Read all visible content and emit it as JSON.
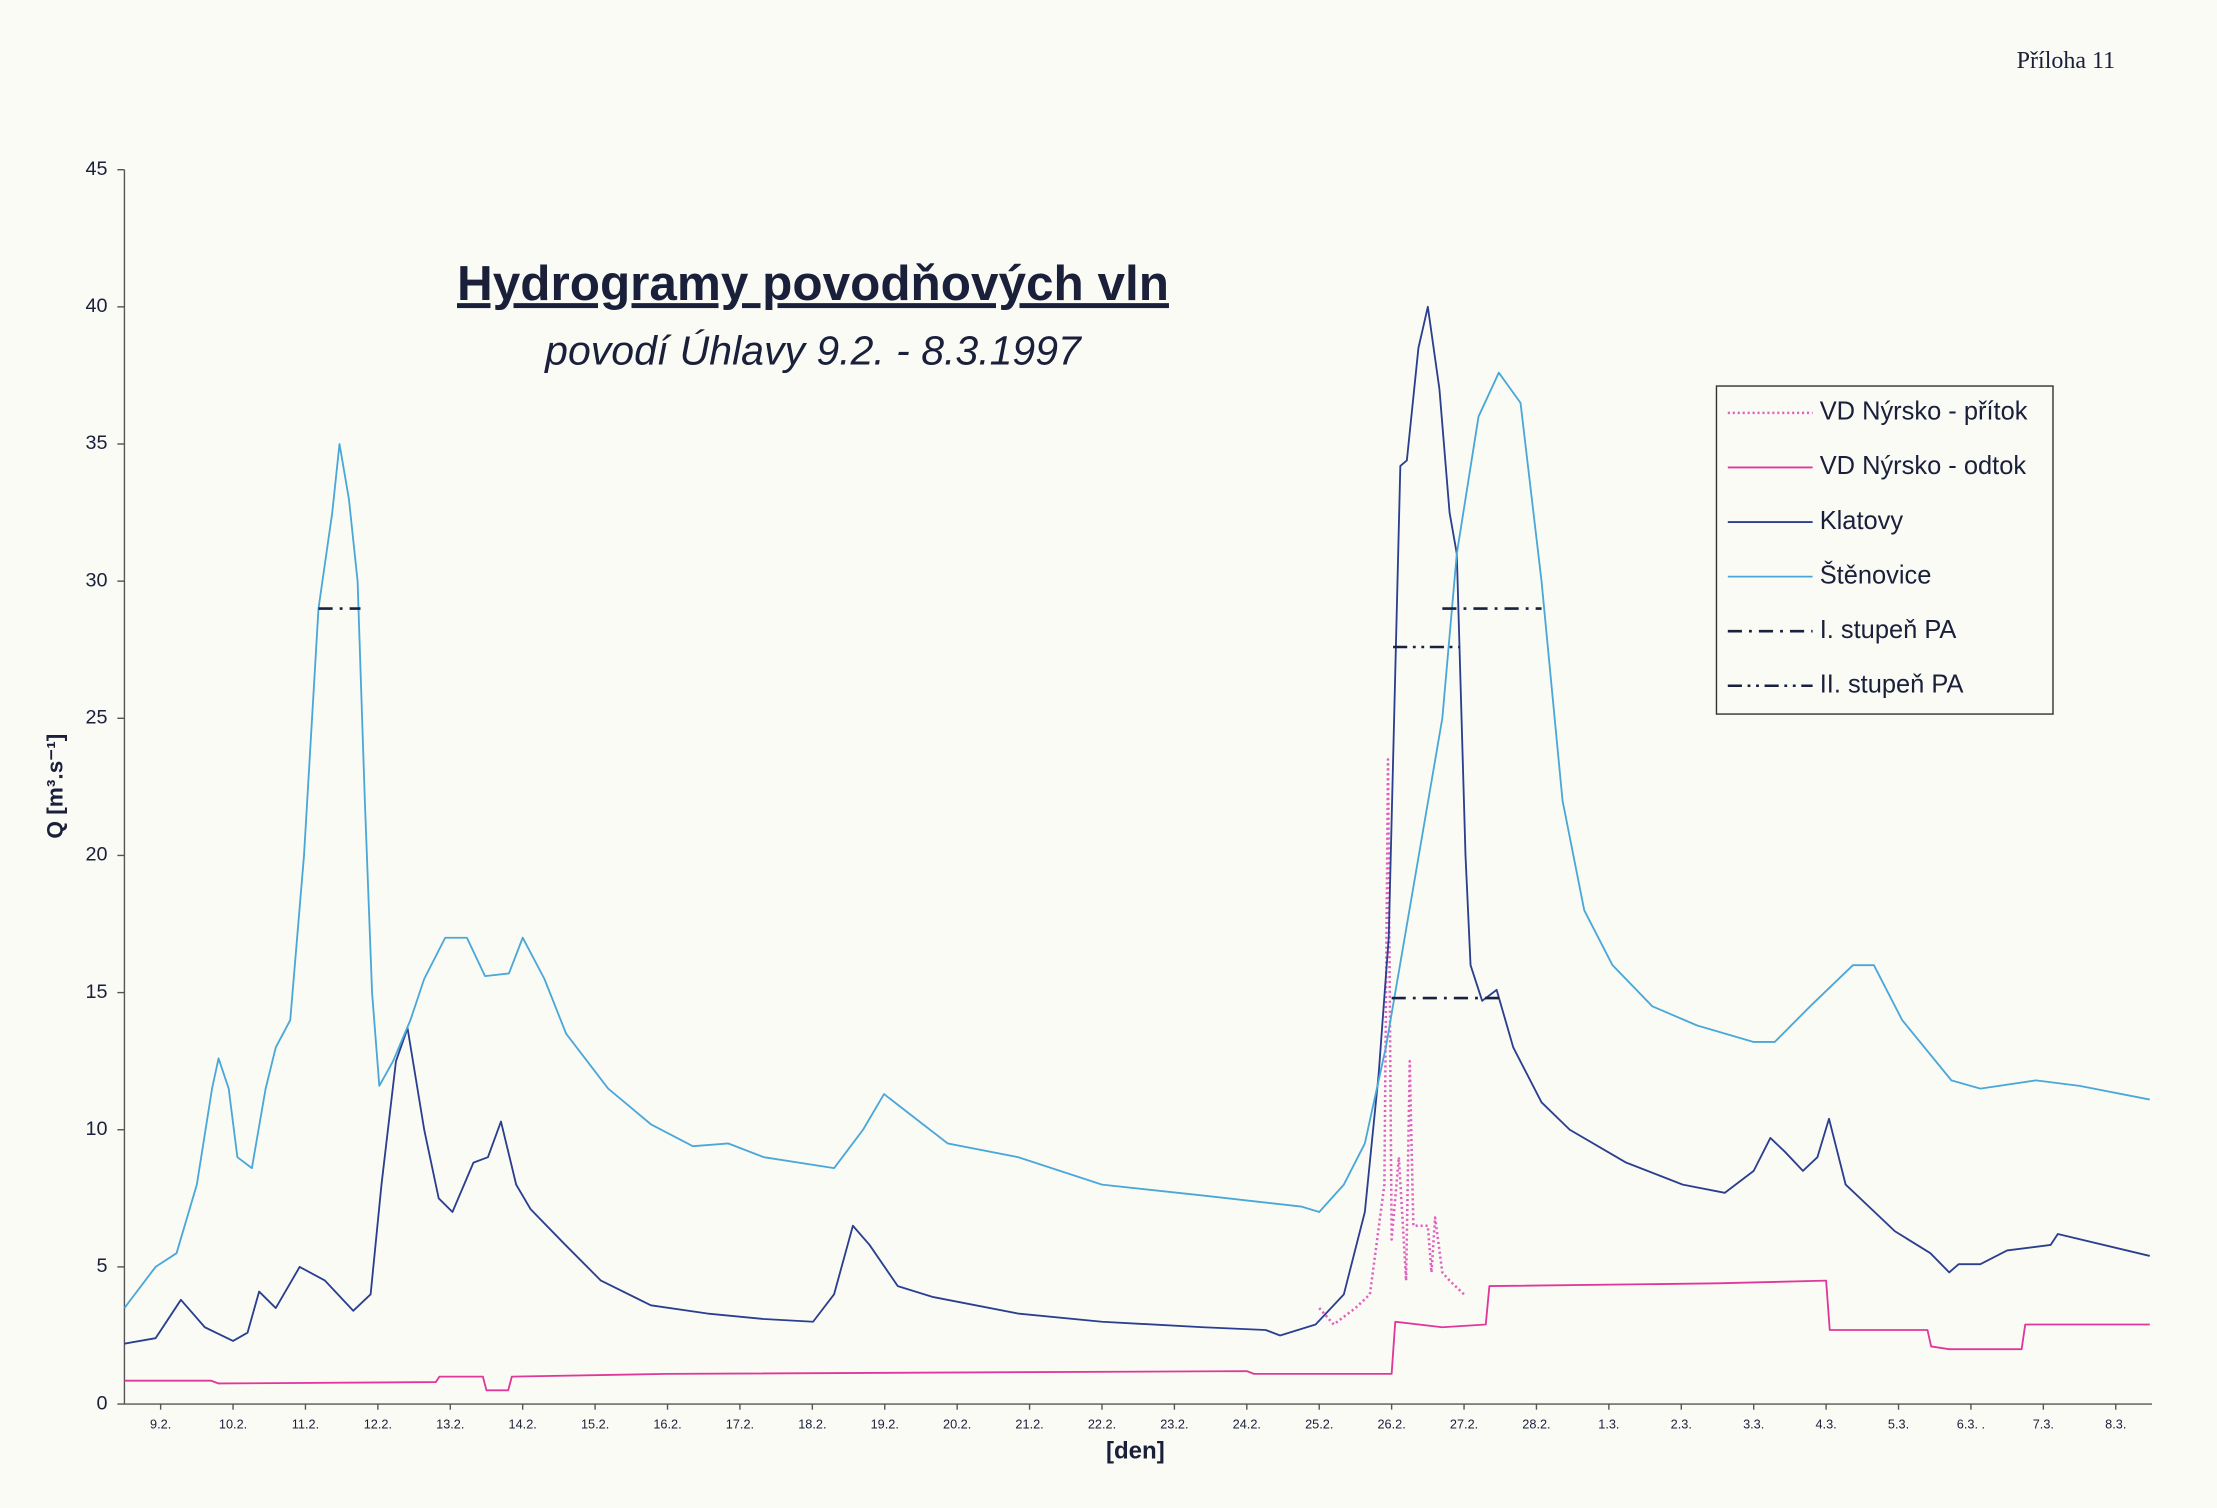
{
  "page_label": "Příloha 11",
  "chart_data": {
    "type": "line",
    "title": "Hydrogramy povodňových vln",
    "subtitle": "povodí Úhlavy 9.2. - 8.3.1997",
    "x_label": "[den]",
    "y_label": "Q [m³.s⁻¹]",
    "xlim": [
      0,
      28
    ],
    "xticks": [
      {
        "value": 0.5,
        "label": "9.2."
      },
      {
        "value": 1.5,
        "label": "10.2."
      },
      {
        "value": 2.5,
        "label": "11.2."
      },
      {
        "value": 3.5,
        "label": "12.2."
      },
      {
        "value": 4.5,
        "label": "13.2."
      },
      {
        "value": 5.5,
        "label": "14.2."
      },
      {
        "value": 6.5,
        "label": "15.2."
      },
      {
        "value": 7.5,
        "label": "16.2."
      },
      {
        "value": 8.5,
        "label": "17.2."
      },
      {
        "value": 9.5,
        "label": "18.2."
      },
      {
        "value": 10.5,
        "label": "19.2."
      },
      {
        "value": 11.5,
        "label": "20.2."
      },
      {
        "value": 12.5,
        "label": "21.2."
      },
      {
        "value": 13.5,
        "label": "22.2."
      },
      {
        "value": 14.5,
        "label": "23.2."
      },
      {
        "value": 15.5,
        "label": "24.2."
      },
      {
        "value": 16.5,
        "label": "25.2."
      },
      {
        "value": 17.5,
        "label": "26.2."
      },
      {
        "value": 18.5,
        "label": "27.2."
      },
      {
        "value": 19.5,
        "label": "28.2."
      },
      {
        "value": 20.5,
        "label": "1.3."
      },
      {
        "value": 21.5,
        "label": "2.3."
      },
      {
        "value": 22.5,
        "label": "3.3."
      },
      {
        "value": 23.5,
        "label": "4.3."
      },
      {
        "value": 24.5,
        "label": "5.3."
      },
      {
        "value": 25.5,
        "label": "6.3. ."
      },
      {
        "value": 26.5,
        "label": "7.3."
      },
      {
        "value": 27.5,
        "label": "8.3."
      }
    ],
    "ylim": [
      0,
      45
    ],
    "yticks": [
      0,
      5,
      10,
      15,
      20,
      25,
      30,
      35,
      40,
      45
    ],
    "legend": "upper-right",
    "series": [
      {
        "name": "VD Nýrsko - přítok",
        "color": "#e060c0",
        "line_style": "dotted",
        "x": [
          16.5,
          16.7,
          17.0,
          17.2,
          17.4,
          17.45,
          17.5,
          17.6,
          17.7,
          17.75,
          17.8,
          18.0,
          18.05,
          18.1,
          18.2,
          18.3,
          18.5
        ],
        "values": [
          3.5,
          2.9,
          3.5,
          4.0,
          8,
          23.5,
          6,
          9,
          4.5,
          12.5,
          6.5,
          6.5,
          4.8,
          6.8,
          4.8,
          4.5,
          4.0
        ]
      },
      {
        "name": "VD Nýrsko - odtok",
        "color": "#e0389a",
        "line_style": "solid",
        "x": [
          0,
          1.2,
          1.3,
          4.3,
          4.35,
          4.95,
          5.0,
          5.3,
          5.35,
          7.5,
          15.5,
          15.6,
          17.5,
          17.55,
          18.2,
          18.8,
          18.85,
          22,
          23.5,
          23.55,
          24.9,
          24.95,
          25.2,
          26.2,
          26.25,
          27.97
        ],
        "values": [
          0.85,
          0.85,
          0.75,
          0.8,
          1.0,
          1.0,
          0.5,
          0.5,
          1.0,
          1.1,
          1.2,
          1.1,
          1.1,
          3.0,
          2.8,
          2.9,
          4.3,
          4.4,
          4.5,
          2.7,
          2.7,
          2.1,
          2.0,
          2.0,
          2.9,
          2.9
        ]
      },
      {
        "name": "Klatovy",
        "color": "#2a3f8f",
        "line_style": "solid",
        "x": [
          0,
          0.43,
          0.78,
          1.11,
          1.5,
          1.7,
          1.86,
          2.09,
          2.42,
          2.77,
          3.16,
          3.4,
          3.55,
          3.75,
          3.91,
          4.14,
          4.34,
          4.53,
          4.82,
          5.02,
          5.2,
          5.41,
          5.61,
          6.09,
          6.58,
          7.27,
          8.05,
          8.83,
          9.51,
          9.8,
          10.06,
          10.29,
          10.68,
          11.17,
          12.34,
          13.5,
          14.9,
          15.76,
          15.96,
          16.45,
          16.84,
          17.13,
          17.32,
          17.46,
          17.62,
          17.71,
          17.87,
          18.0,
          18.16,
          18.3,
          18.4,
          18.52,
          18.59,
          18.75,
          18.95,
          19.18,
          19.57,
          19.96,
          20.74,
          21.52,
          22.1,
          22.5,
          22.73,
          22.93,
          23.18,
          23.38,
          23.54,
          23.77,
          24.45,
          24.94,
          25.2,
          25.33,
          25.63,
          26.0,
          26.6,
          26.7,
          27.97
        ],
        "values": [
          2.2,
          2.4,
          3.8,
          2.8,
          2.3,
          2.6,
          4.1,
          3.5,
          5,
          4.5,
          3.4,
          4,
          8,
          12.5,
          13.7,
          10,
          7.5,
          7.0,
          8.8,
          9.0,
          10.3,
          8,
          7.1,
          5.8,
          4.5,
          3.6,
          3.3,
          3.1,
          3.0,
          4,
          6.5,
          5.8,
          4.3,
          3.9,
          3.3,
          3.0,
          2.8,
          2.7,
          2.5,
          2.9,
          4,
          7,
          12,
          17,
          34.2,
          34.4,
          38.5,
          40,
          37,
          32.5,
          31,
          20,
          16,
          14.7,
          15.1,
          13,
          11,
          10,
          8.8,
          8,
          7.7,
          8.5,
          9.7,
          9.2,
          8.5,
          9,
          10.4,
          8,
          6.3,
          5.5,
          4.8,
          5.1,
          5.1,
          5.6,
          5.8,
          6.2,
          5.4
        ]
      },
      {
        "name": "Štěnovice",
        "color": "#4aa8d8",
        "line_style": "solid",
        "x": [
          0,
          0.43,
          0.72,
          1.0,
          1.21,
          1.3,
          1.44,
          1.56,
          1.76,
          1.95,
          2.09,
          2.29,
          2.48,
          2.68,
          2.87,
          2.97,
          3.1,
          3.22,
          3.32,
          3.42,
          3.52,
          3.71,
          3.95,
          4.14,
          4.43,
          4.73,
          4.98,
          5.31,
          5.5,
          5.8,
          6.1,
          6.68,
          7.27,
          7.85,
          8.34,
          8.83,
          9.8,
          10.2,
          10.49,
          10.88,
          11.37,
          12.34,
          13.5,
          14.9,
          16.25,
          16.5,
          16.84,
          17.13,
          17.42,
          17.81,
          18.2,
          18.4,
          18.7,
          18.98,
          19.28,
          19.57,
          19.86,
          20.16,
          20.55,
          21.1,
          21.72,
          22.5,
          22.79,
          23.28,
          23.87,
          24.16,
          24.55,
          25.23,
          25.63,
          26.4,
          27.0,
          27.97
        ],
        "values": [
          3.5,
          5.0,
          5.5,
          8,
          11.5,
          12.6,
          11.5,
          9,
          8.6,
          11.5,
          13,
          14,
          20,
          29,
          32.5,
          35,
          33,
          30,
          22,
          15,
          11.6,
          12.5,
          14,
          15.5,
          17,
          17,
          15.6,
          15.7,
          17,
          15.5,
          13.5,
          11.5,
          10.2,
          9.4,
          9.5,
          9,
          8.6,
          10,
          11.3,
          10.5,
          9.5,
          9,
          8,
          7.6,
          7.2,
          7.0,
          8,
          9.5,
          13,
          19,
          25,
          31,
          36,
          37.6,
          36.5,
          30,
          22,
          18,
          16,
          14.5,
          13.8,
          13.2,
          13.2,
          14.5,
          16,
          16,
          14,
          11.8,
          11.5,
          11.8,
          11.6,
          11.1
        ]
      },
      {
        "name": "I. stupeň PA",
        "color": "#1a2040",
        "line_style": "dash-dot",
        "x": [
          2.68,
          3.26,
          3.26,
          17.5,
          19.0,
          19.0,
          18.2,
          19.57
        ],
        "values": [
          29,
          29,
          null,
          14.8,
          14.8,
          null,
          29,
          29
        ]
      },
      {
        "name": "II. stupeň PA",
        "color": "#1a2040",
        "line_style": "dash-dot-dot",
        "x": [
          17.52,
          18.44
        ],
        "values": [
          27.6,
          27.6
        ]
      }
    ]
  }
}
